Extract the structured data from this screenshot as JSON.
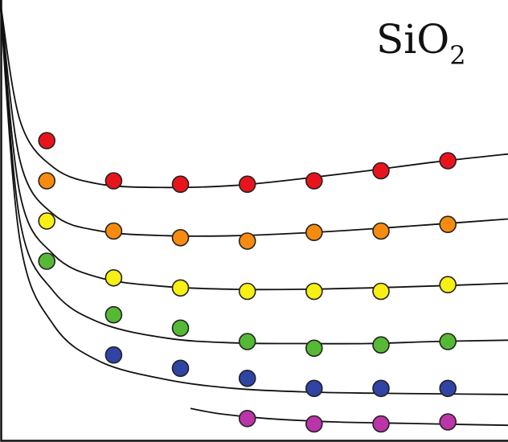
{
  "chart_data": {
    "type": "scatter",
    "title": "",
    "label": {
      "main": "SiO",
      "subscript": "2"
    },
    "xlabel": "",
    "ylabel": "",
    "xlim": [
      0,
      7.6
    ],
    "ylim": [
      0,
      6.6
    ],
    "grid": false,
    "legend": "none",
    "series": [
      {
        "color": "#e8141c",
        "curve": [
          [
            0.0,
            6.6
          ],
          [
            0.3,
            4.8
          ],
          [
            0.8,
            4.1
          ],
          [
            1.5,
            3.85
          ],
          [
            2.5,
            3.8
          ],
          [
            3.5,
            3.83
          ],
          [
            4.5,
            3.93
          ],
          [
            5.5,
            4.05
          ],
          [
            6.5,
            4.18
          ],
          [
            7.6,
            4.3
          ]
        ],
        "points": [
          [
            0.7,
            4.5
          ],
          [
            1.7,
            3.9
          ],
          [
            2.7,
            3.85
          ],
          [
            3.7,
            3.85
          ],
          [
            4.7,
            3.9
          ],
          [
            5.7,
            4.05
          ],
          [
            6.7,
            4.2
          ]
        ]
      },
      {
        "color": "#f78b0f",
        "curve": [
          [
            0.0,
            6.6
          ],
          [
            0.3,
            4.2
          ],
          [
            0.8,
            3.4
          ],
          [
            1.5,
            3.15
          ],
          [
            2.5,
            3.08
          ],
          [
            3.5,
            3.08
          ],
          [
            4.5,
            3.12
          ],
          [
            5.5,
            3.18
          ],
          [
            6.5,
            3.25
          ],
          [
            7.6,
            3.33
          ]
        ],
        "points": [
          [
            0.7,
            3.9
          ],
          [
            1.7,
            3.15
          ],
          [
            2.7,
            3.05
          ],
          [
            3.7,
            3.0
          ],
          [
            4.7,
            3.13
          ],
          [
            5.7,
            3.15
          ],
          [
            6.7,
            3.25
          ]
        ]
      },
      {
        "color": "#f8ef14",
        "curve": [
          [
            0.0,
            6.6
          ],
          [
            0.3,
            3.7
          ],
          [
            0.8,
            2.8
          ],
          [
            1.5,
            2.45
          ],
          [
            2.5,
            2.32
          ],
          [
            3.5,
            2.28
          ],
          [
            4.5,
            2.28
          ],
          [
            5.5,
            2.3
          ],
          [
            6.5,
            2.33
          ],
          [
            7.6,
            2.37
          ]
        ],
        "points": [
          [
            0.7,
            3.3
          ],
          [
            1.7,
            2.45
          ],
          [
            2.7,
            2.3
          ],
          [
            3.7,
            2.25
          ],
          [
            4.7,
            2.25
          ],
          [
            5.7,
            2.25
          ],
          [
            6.7,
            2.35
          ]
        ]
      },
      {
        "color": "#56b935",
        "curve": [
          [
            0.0,
            6.6
          ],
          [
            0.3,
            3.3
          ],
          [
            0.8,
            2.25
          ],
          [
            1.5,
            1.78
          ],
          [
            2.5,
            1.55
          ],
          [
            3.5,
            1.48
          ],
          [
            4.5,
            1.47
          ],
          [
            5.5,
            1.47
          ],
          [
            6.5,
            1.5
          ],
          [
            7.6,
            1.52
          ]
        ],
        "points": [
          [
            0.7,
            2.7
          ],
          [
            1.7,
            1.9
          ],
          [
            2.7,
            1.7
          ],
          [
            3.7,
            1.5
          ],
          [
            4.7,
            1.4
          ],
          [
            5.7,
            1.45
          ],
          [
            6.7,
            1.5
          ]
        ]
      },
      {
        "color": "#3044a5",
        "curve": [
          [
            0.0,
            6.6
          ],
          [
            0.3,
            3.0
          ],
          [
            0.8,
            1.75
          ],
          [
            1.5,
            1.2
          ],
          [
            2.5,
            0.93
          ],
          [
            3.5,
            0.8
          ],
          [
            4.5,
            0.75
          ],
          [
            5.5,
            0.73
          ],
          [
            6.5,
            0.72
          ],
          [
            7.6,
            0.71
          ]
        ],
        "points": [
          [
            1.7,
            1.3
          ],
          [
            2.7,
            1.1
          ],
          [
            3.7,
            0.95
          ],
          [
            4.7,
            0.8
          ],
          [
            5.7,
            0.8
          ],
          [
            6.7,
            0.8
          ]
        ]
      },
      {
        "color": "#bb35a9",
        "curve": [
          [
            2.85,
            0.5
          ],
          [
            3.3,
            0.42
          ],
          [
            4.0,
            0.35
          ],
          [
            5.0,
            0.3
          ],
          [
            6.0,
            0.28
          ],
          [
            7.0,
            0.26
          ],
          [
            7.6,
            0.25
          ]
        ],
        "points": [
          [
            3.7,
            0.35
          ],
          [
            4.7,
            0.27
          ],
          [
            5.7,
            0.27
          ],
          [
            6.7,
            0.3
          ]
        ]
      }
    ]
  }
}
